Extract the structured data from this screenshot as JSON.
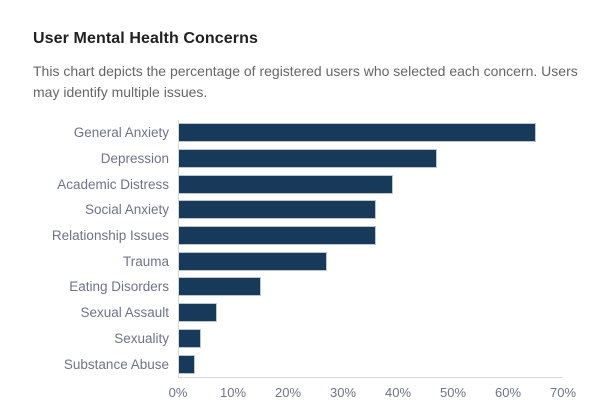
{
  "page": {
    "title": "User Mental Health Concerns",
    "subtitle": "This chart depicts the percentage of registered users who selected each concern. Users may identify multiple issues."
  },
  "chart_data": {
    "type": "bar",
    "orientation": "horizontal",
    "title": "User Mental Health Concerns",
    "subtitle": "This chart depicts the percentage of registered users who selected each concern. Users may identify multiple issues.",
    "categories": [
      "General Anxiety",
      "Depression",
      "Academic Distress",
      "Social Anxiety",
      "Relationship Issues",
      "Trauma",
      "Eating Disorders",
      "Sexual Assault",
      "Sexuality",
      "Substance Abuse"
    ],
    "values": [
      65,
      47,
      39,
      36,
      36,
      27,
      15,
      7,
      4,
      3
    ],
    "value_unit": "%",
    "xlim": [
      0,
      70
    ],
    "x_ticks": [
      "0%",
      "10%",
      "20%",
      "30%",
      "40%",
      "50%",
      "60%",
      "70%"
    ],
    "xlabel": "",
    "ylabel": "",
    "grid": false,
    "legend": false,
    "colors": {
      "bar_fill": "#17395a",
      "bar_stroke": "#bcc5d0",
      "axis_line": "#d8d8d8",
      "category_label": "#6e7487",
      "tick_label": "#6e7487",
      "title_text": "#212121",
      "subtitle_text": "#666666"
    }
  }
}
